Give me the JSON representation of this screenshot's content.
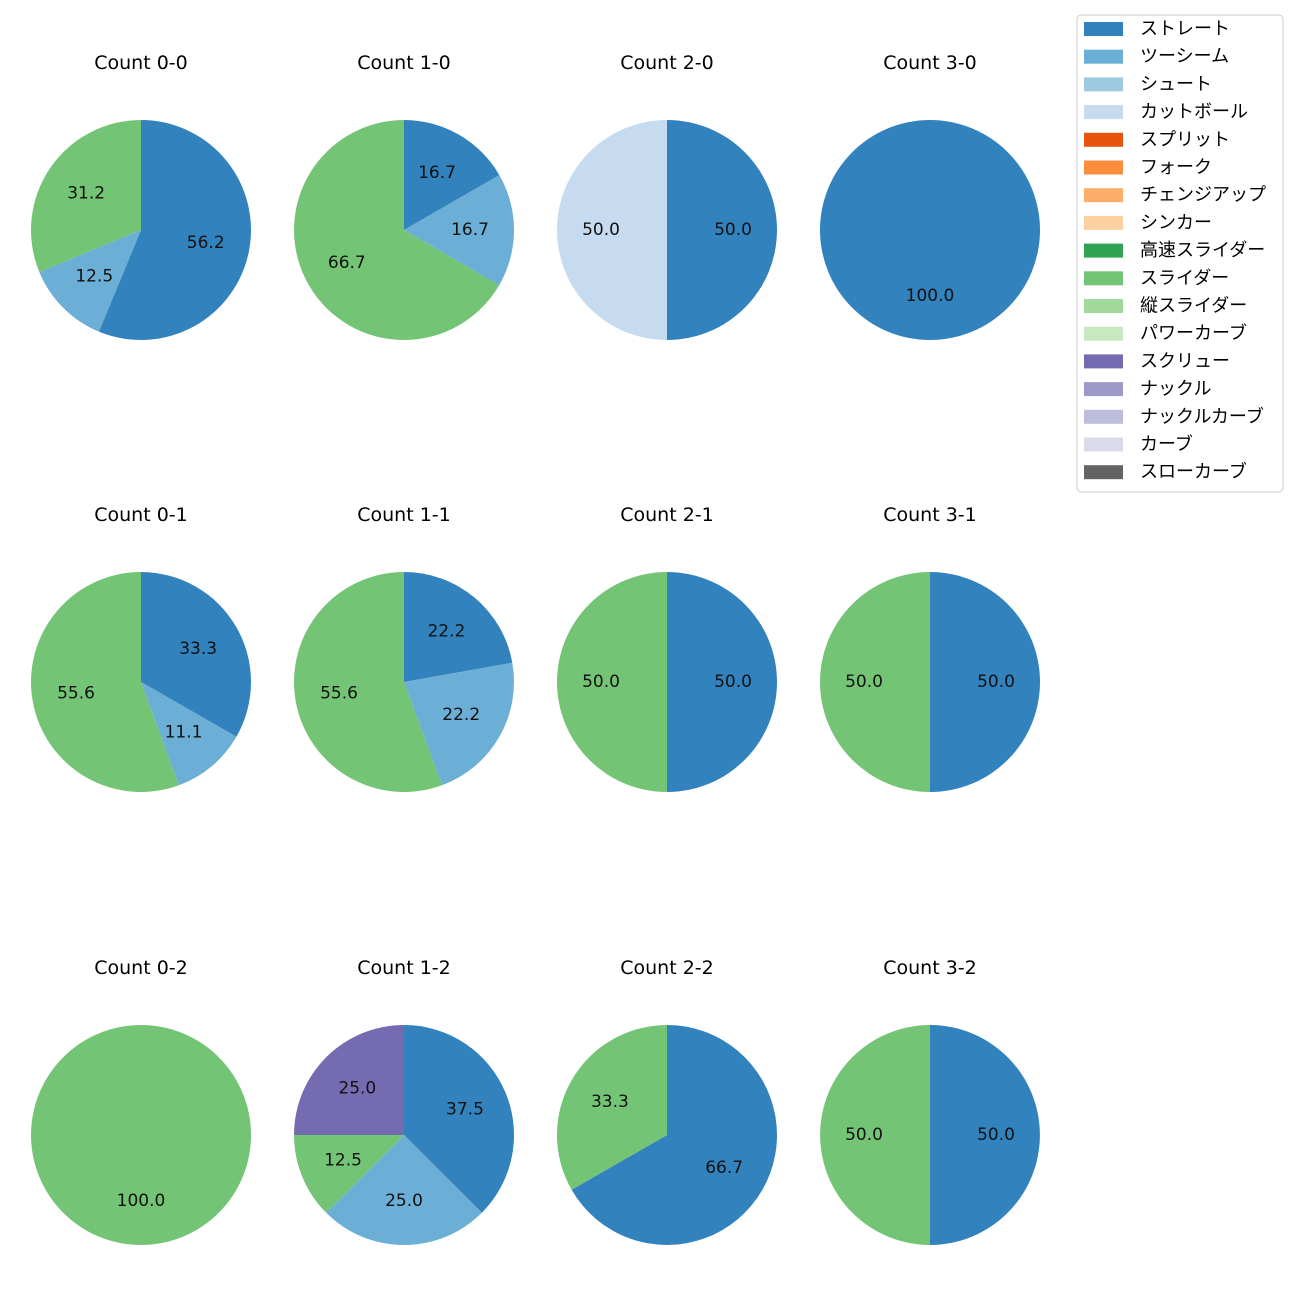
{
  "chart_data": {
    "type": "pie",
    "legend": {
      "placement": "top-right",
      "entries": [
        {
          "label": "ストレート",
          "color": "#3182bd"
        },
        {
          "label": "ツーシーム",
          "color": "#6baed6"
        },
        {
          "label": "シュート",
          "color": "#9ecae1"
        },
        {
          "label": "カットボール",
          "color": "#c6dbef"
        },
        {
          "label": "スプリット",
          "color": "#e6550d"
        },
        {
          "label": "フォーク",
          "color": "#fd8d3c"
        },
        {
          "label": "チェンジアップ",
          "color": "#fdae6b"
        },
        {
          "label": "シンカー",
          "color": "#fdd0a2"
        },
        {
          "label": "高速スライダー",
          "color": "#31a354"
        },
        {
          "label": "スライダー",
          "color": "#74c476"
        },
        {
          "label": "縦スライダー",
          "color": "#a1d99b"
        },
        {
          "label": "パワーカーブ",
          "color": "#c7e9c0"
        },
        {
          "label": "スクリュー",
          "color": "#756bb1"
        },
        {
          "label": "ナックル",
          "color": "#9e9ac8"
        },
        {
          "label": "ナックルカーブ",
          "color": "#bcbddc"
        },
        {
          "label": "カーブ",
          "color": "#dadaeb"
        },
        {
          "label": "スローカーブ",
          "color": "#636363"
        }
      ]
    },
    "pies": [
      {
        "title": "Count 0-0",
        "slices": [
          {
            "pitch": "ストレート",
            "value": 56.2,
            "label": "56.2"
          },
          {
            "pitch": "ツーシーム",
            "value": 12.5,
            "label": "12.5"
          },
          {
            "pitch": "スライダー",
            "value": 31.2,
            "label": "31.2"
          }
        ]
      },
      {
        "title": "Count 1-0",
        "slices": [
          {
            "pitch": "ストレート",
            "value": 16.7,
            "label": "16.7"
          },
          {
            "pitch": "ツーシーム",
            "value": 16.7,
            "label": "16.7"
          },
          {
            "pitch": "スライダー",
            "value": 66.7,
            "label": "66.7"
          }
        ]
      },
      {
        "title": "Count 2-0",
        "slices": [
          {
            "pitch": "ストレート",
            "value": 50.0,
            "label": "50.0"
          },
          {
            "pitch": "カットボール",
            "value": 50.0,
            "label": "50.0"
          }
        ]
      },
      {
        "title": "Count 3-0",
        "slices": [
          {
            "pitch": "ストレート",
            "value": 100.0,
            "label": "100.0"
          }
        ]
      },
      {
        "title": "Count 0-1",
        "slices": [
          {
            "pitch": "ストレート",
            "value": 33.3,
            "label": "33.3"
          },
          {
            "pitch": "ツーシーム",
            "value": 11.1,
            "label": "11.1"
          },
          {
            "pitch": "スライダー",
            "value": 55.6,
            "label": "55.6"
          }
        ]
      },
      {
        "title": "Count 1-1",
        "slices": [
          {
            "pitch": "ストレート",
            "value": 22.2,
            "label": "22.2"
          },
          {
            "pitch": "ツーシーム",
            "value": 22.2,
            "label": "22.2"
          },
          {
            "pitch": "スライダー",
            "value": 55.6,
            "label": "55.6"
          }
        ]
      },
      {
        "title": "Count 2-1",
        "slices": [
          {
            "pitch": "ストレート",
            "value": 50.0,
            "label": "50.0"
          },
          {
            "pitch": "スライダー",
            "value": 50.0,
            "label": "50.0"
          }
        ]
      },
      {
        "title": "Count 3-1",
        "slices": [
          {
            "pitch": "ストレート",
            "value": 50.0,
            "label": "50.0"
          },
          {
            "pitch": "スライダー",
            "value": 50.0,
            "label": "50.0"
          }
        ]
      },
      {
        "title": "Count 0-2",
        "slices": [
          {
            "pitch": "スライダー",
            "value": 100.0,
            "label": "100.0"
          }
        ]
      },
      {
        "title": "Count 1-2",
        "slices": [
          {
            "pitch": "ストレート",
            "value": 37.5,
            "label": "37.5"
          },
          {
            "pitch": "ツーシーム",
            "value": 25.0,
            "label": "25.0"
          },
          {
            "pitch": "スライダー",
            "value": 12.5,
            "label": "12.5"
          },
          {
            "pitch": "スクリュー",
            "value": 25.0,
            "label": "25.0"
          }
        ]
      },
      {
        "title": "Count 2-2",
        "slices": [
          {
            "pitch": "ストレート",
            "value": 66.7,
            "label": "66.7"
          },
          {
            "pitch": "スライダー",
            "value": 33.3,
            "label": "33.3"
          }
        ]
      },
      {
        "title": "Count 3-2",
        "slices": [
          {
            "pitch": "ストレート",
            "value": 50.0,
            "label": "50.0"
          },
          {
            "pitch": "スライダー",
            "value": 50.0,
            "label": "50.0"
          }
        ]
      }
    ]
  }
}
